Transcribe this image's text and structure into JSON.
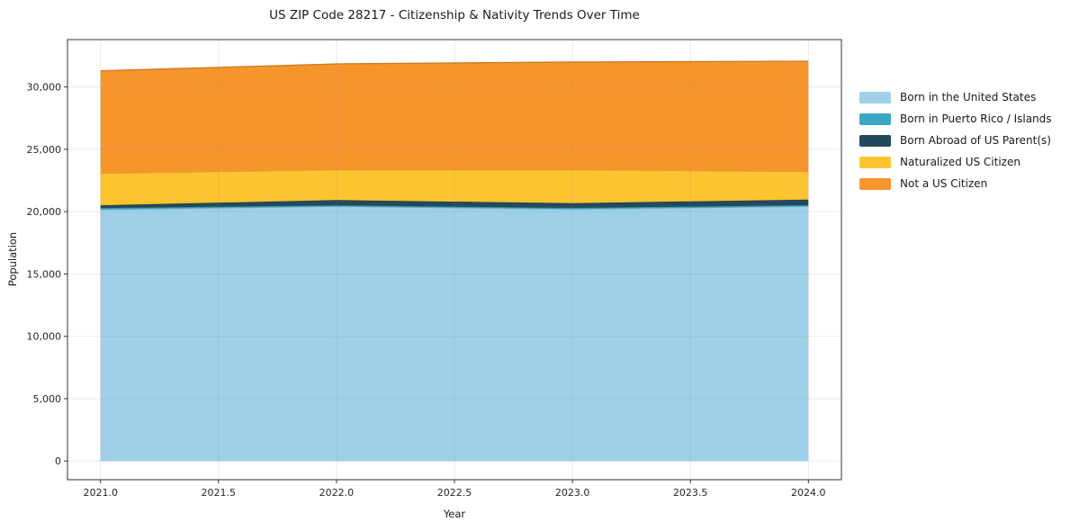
{
  "title": "US ZIP Code 28217 - Citizenship & Nativity Trends Over Time",
  "chart_data": {
    "type": "area",
    "stacked": true,
    "title": "US ZIP Code 28217 - Citizenship & Nativity Trends Over Time",
    "xlabel": "Year",
    "ylabel": "Population",
    "x": [
      2021,
      2022,
      2023,
      2024
    ],
    "x_ticks": [
      2021.0,
      2021.5,
      2022.0,
      2022.5,
      2023.0,
      2023.5,
      2024.0
    ],
    "x_tick_labels": [
      "2021.0",
      "2021.5",
      "2022.0",
      "2022.5",
      "2023.0",
      "2023.5",
      "2024.0"
    ],
    "y_ticks": [
      0,
      5000,
      10000,
      15000,
      20000,
      25000,
      30000
    ],
    "y_tick_labels": [
      "0",
      "5,000",
      "10,000",
      "15,000",
      "20,000",
      "25,000",
      "30,000"
    ],
    "xlim": [
      2020.86,
      2024.14
    ],
    "ylim": [
      -1500,
      33800
    ],
    "grid": true,
    "legend_position": "right",
    "series": [
      {
        "name": "Born in the United States",
        "color": "#9fd0e8",
        "values": [
          20170,
          20430,
          20200,
          20430
        ]
      },
      {
        "name": "Born in Puerto Rico / Islands",
        "color": "#3ba7c3",
        "values": [
          120,
          80,
          100,
          90
        ]
      },
      {
        "name": "Born Abroad of US Parent(s)",
        "color": "#234a5c",
        "values": [
          220,
          420,
          380,
          450
        ]
      },
      {
        "name": "Naturalized US Citizen",
        "color": "#fdc330",
        "values": [
          2570,
          2440,
          2690,
          2260
        ]
      },
      {
        "name": "Not a US Citizen",
        "color": "#f7952d",
        "values": [
          8220,
          8480,
          8630,
          8840
        ]
      }
    ],
    "colors": {
      "spine": "#333333",
      "grid": "#8c8c8c",
      "text": "#262626"
    }
  }
}
